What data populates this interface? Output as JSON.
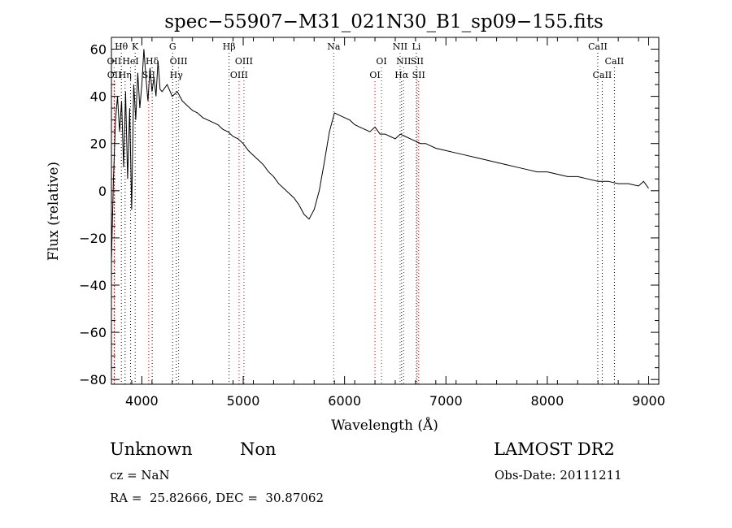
{
  "chart_data": {
    "type": "line",
    "title": "spec−55907−M31_021N30_B1_sp09−155.fits",
    "xlabel": "Wavelength (Å)",
    "ylabel": "Flux (relative)",
    "xlim": [
      3700,
      9100
    ],
    "ylim": [
      -82,
      65
    ],
    "x_ticks": [
      4000,
      5000,
      6000,
      7000,
      8000,
      9000
    ],
    "x_tick_labels": [
      "4000",
      "5000",
      "6000",
      "7000",
      "8000",
      "9000"
    ],
    "y_ticks": [
      -80,
      -60,
      -40,
      -20,
      0,
      20,
      40,
      60
    ],
    "y_tick_labels": [
      "−80",
      "−60",
      "−40",
      "−20",
      "0",
      "20",
      "40",
      "60"
    ],
    "grid": false,
    "line_color": "#000000",
    "marker_line_color": "#000000",
    "marker_line_color_red": "#cc0000",
    "series": [
      {
        "x": [
          3700,
          3720,
          3740,
          3760,
          3780,
          3800,
          3820,
          3840,
          3860,
          3880,
          3900,
          3920,
          3940,
          3960,
          3980,
          4000,
          4020,
          4040,
          4060,
          4080,
          4100,
          4120,
          4140,
          4160,
          4180,
          4200,
          4250,
          4300,
          4350,
          4400,
          4450,
          4500,
          4550,
          4600,
          4650,
          4700,
          4750,
          4800,
          4850,
          4900,
          4950,
          5000,
          5050,
          5100,
          5150,
          5200,
          5250,
          5300,
          5350,
          5400,
          5450,
          5500,
          5550,
          5600,
          5650,
          5700,
          5750,
          5800,
          5850,
          5900,
          5950,
          6000,
          6050,
          6100,
          6150,
          6200,
          6250,
          6300,
          6350,
          6400,
          6450,
          6500,
          6550,
          6600,
          6650,
          6700,
          6750,
          6800,
          6900,
          7000,
          7100,
          7200,
          7300,
          7400,
          7500,
          7600,
          7700,
          7800,
          7900,
          8000,
          8100,
          8200,
          8300,
          8400,
          8500,
          8600,
          8700,
          8800,
          8900,
          8950,
          9000
        ],
        "y": [
          -30,
          5,
          30,
          40,
          25,
          38,
          10,
          42,
          5,
          35,
          -8,
          45,
          30,
          50,
          35,
          45,
          60,
          48,
          38,
          52,
          42,
          48,
          40,
          55,
          43,
          42,
          45,
          40,
          42,
          38,
          36,
          34,
          33,
          31,
          30,
          29,
          28,
          26,
          25,
          23,
          22,
          20,
          17,
          15,
          13,
          11,
          8,
          6,
          3,
          1,
          -1,
          -3,
          -6,
          -10,
          -12,
          -8,
          0,
          12,
          25,
          33,
          32,
          31,
          30,
          28,
          27,
          26,
          25,
          27,
          24,
          24,
          23,
          22,
          24,
          23,
          22,
          21,
          20,
          20,
          18,
          17,
          16,
          15,
          14,
          13,
          12,
          11,
          10,
          9,
          8,
          8,
          7,
          6,
          6,
          5,
          4,
          4,
          3,
          3,
          2,
          4,
          1
        ]
      }
    ],
    "line_markers": [
      {
        "label": "Hθ",
        "x": 3798,
        "row": 0,
        "color": "black"
      },
      {
        "label": "K",
        "x": 3934,
        "row": 0,
        "color": "black"
      },
      {
        "label": "G",
        "x": 4304,
        "row": 0,
        "color": "black"
      },
      {
        "label": "Hβ",
        "x": 4861,
        "row": 0,
        "color": "black"
      },
      {
        "label": "Na",
        "x": 5893,
        "row": 0,
        "color": "red"
      },
      {
        "label": "NII",
        "x": 6548,
        "row": 0,
        "color": "red"
      },
      {
        "label": "Li",
        "x": 6708,
        "row": 0,
        "color": "black"
      },
      {
        "label": "CaII",
        "x": 8498,
        "row": 0,
        "color": "black"
      },
      {
        "label": "OII",
        "x": 3727,
        "row": 1,
        "color": "red"
      },
      {
        "label": "HeI",
        "x": 3889,
        "row": 1,
        "color": "black"
      },
      {
        "label": "Hδ",
        "x": 4102,
        "row": 1,
        "color": "black"
      },
      {
        "label": "OIII",
        "x": 4363,
        "row": 1,
        "color": "red"
      },
      {
        "label": "OIII",
        "x": 5007,
        "row": 1,
        "color": "red"
      },
      {
        "label": "OI",
        "x": 6364,
        "row": 1,
        "color": "red"
      },
      {
        "label": "NII",
        "x": 6583,
        "row": 1,
        "color": "red"
      },
      {
        "label": "SII",
        "x": 6716,
        "row": 1,
        "color": "red"
      },
      {
        "label": "CaII",
        "x": 8662,
        "row": 1,
        "color": "black"
      },
      {
        "label": "OII",
        "x": 3729,
        "row": 2,
        "color": "red"
      },
      {
        "label": "Hη",
        "x": 3835,
        "row": 2,
        "color": "black"
      },
      {
        "label": "SII",
        "x": 4068,
        "row": 2,
        "color": "red"
      },
      {
        "label": "Hγ",
        "x": 4340,
        "row": 2,
        "color": "black"
      },
      {
        "label": "OIII",
        "x": 4959,
        "row": 2,
        "color": "red"
      },
      {
        "label": "OI",
        "x": 6300,
        "row": 2,
        "color": "red"
      },
      {
        "label": "Hα",
        "x": 6563,
        "row": 2,
        "color": "black"
      },
      {
        "label": "SII",
        "x": 6731,
        "row": 2,
        "color": "red"
      },
      {
        "label": "CaII",
        "x": 8542,
        "row": 2,
        "color": "black"
      }
    ]
  },
  "info": {
    "classification": "Unknown",
    "subclass": "Non",
    "survey": "LAMOST DR2",
    "redshift": "cz = NaN",
    "obs_date": "Obs-Date: 20111211",
    "coords": "RA =  25.82666, DEC =  30.87062"
  }
}
